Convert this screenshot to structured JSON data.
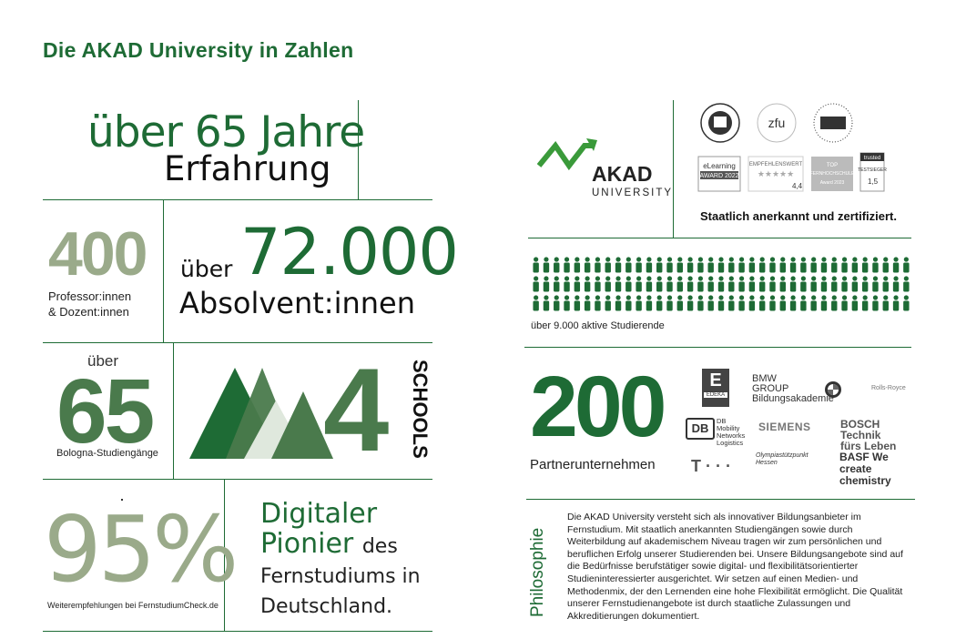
{
  "title": "Die AKAD University in Zahlen",
  "erfahrung": {
    "line1": "über 65 Jahre",
    "line2": "Erfahrung"
  },
  "professoren": {
    "number": "400",
    "label_line1": "Professor:innen",
    "label_line2": "& Dozent:innen"
  },
  "absolventen": {
    "prefix": "über",
    "number": "72.000",
    "label": "Absolvent:innen"
  },
  "studiengaenge": {
    "prefix": "über",
    "number": "65",
    "label": "Bologna-Studiengänge"
  },
  "schools": {
    "number": "4",
    "label": "SCHOOLS"
  },
  "empfehlung": {
    "number": "95%",
    "label": "Weiterempfehlungen bei FernstudiumCheck.de"
  },
  "pionier": {
    "w1": "Digitaler",
    "w2": "Pionier",
    "w3": "des",
    "w4": "Fernstudiums in",
    "w5": "Deutschland."
  },
  "akad_logo": {
    "name": "AKAD",
    "sub": "UNIVERSITY"
  },
  "badges": [
    "Staatlich anerkannte Fernhochschule",
    "zfu",
    "System Akkreditiert",
    "eLearning Award 2022",
    "Empfehlenswert",
    "Top Fernhochschule 2023",
    "trusted Testsieger 1,5"
  ],
  "zertifiziert": "Staatlich anerkannt und zertifiziert.",
  "studierende": {
    "label": "über 9.000 aktive Studierende",
    "rows": 3,
    "per_row": 37
  },
  "partner": {
    "number": "200",
    "label": "Partnerunternehmen",
    "logos": [
      "EDEKA",
      "BMW GROUP Bildungsakademie",
      "BMW",
      "Rolls-Royce",
      "DB Mobility Networks Logistics",
      "SIEMENS",
      "BOSCH Technik fürs Leben",
      "T · · ·",
      "Olympiastützpunkt Hessen",
      "BASF We create chemistry"
    ]
  },
  "philosophie": {
    "heading": "Philosophie",
    "text": "Die AKAD University versteht sich als innovativer Bildungsanbieter im Fernstudium. Mit staatlich anerkannten Studiengängen sowie durch Weiterbildung auf akademischem Niveau tragen wir zum persönlichen und beruflichen Erfolg unserer Studierenden bei. Unsere Bildungsangebote sind auf die Bedürfnisse berufstätiger sowie digital- und flexibilitätsorientierter Studieninteressierter ausgerichtet. Wir setzen auf einen Medien- und Methodenmix, der den Lernenden eine hohe Flexibilität ermöglicht. Die Qualität unserer Fernstudienangebote ist durch staatliche Zulassungen und Akkreditierungen dokumentiert."
  },
  "colors": {
    "primary": "#1e6b35",
    "sage": "#9aaa8a",
    "mid": "#4a7a4c",
    "light": "#dfe8dd"
  }
}
